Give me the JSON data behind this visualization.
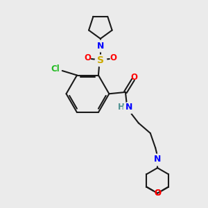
{
  "bg_color": "#ebebeb",
  "bond_color": "#1a1a1a",
  "colors": {
    "N": "#0000ff",
    "O": "#ff0000",
    "S": "#ccaa00",
    "Cl": "#22bb22",
    "H": "#4a9090",
    "C": "#1a1a1a"
  },
  "lw": 1.5
}
